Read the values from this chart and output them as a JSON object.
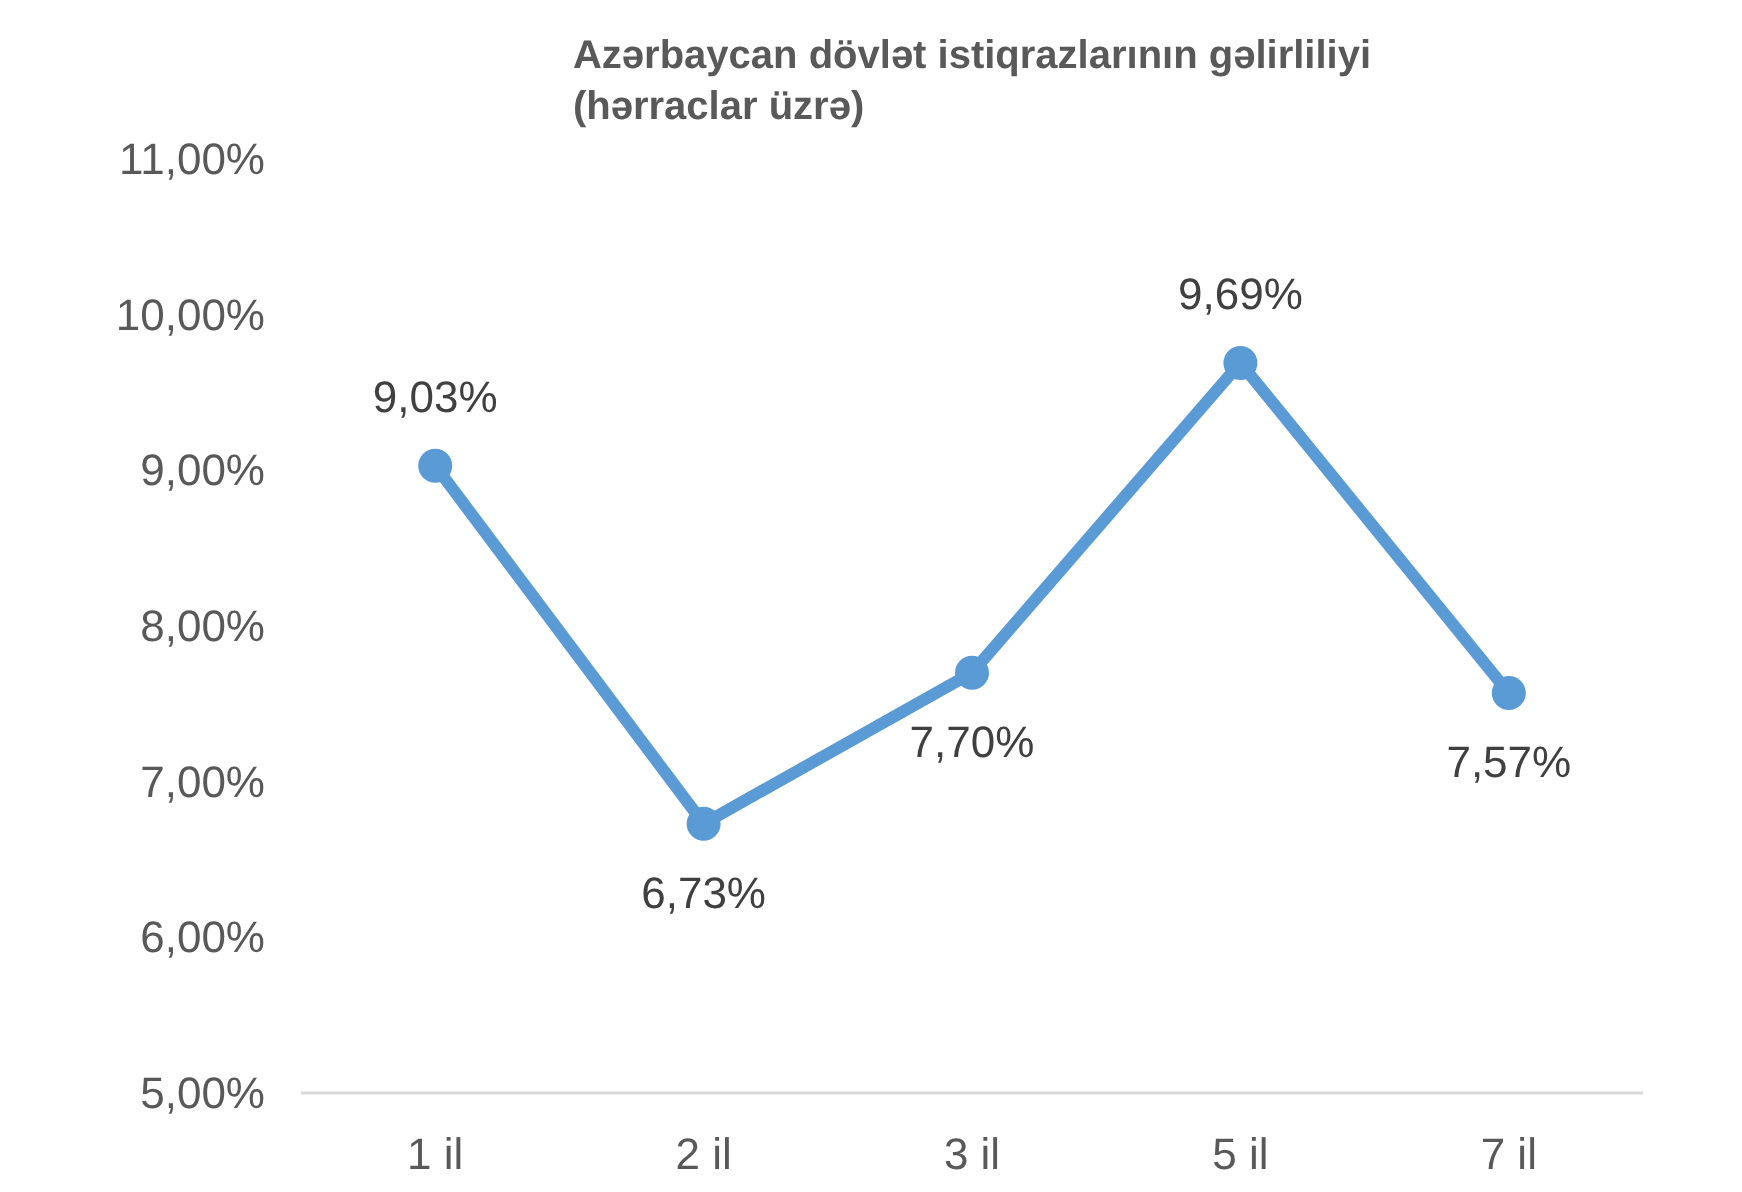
{
  "chart_data": {
    "type": "line",
    "title": "Azərbaycan dövlət istiqrazlarının gəlirliliyi\n(hərraclar üzrə)",
    "categories": [
      "1 il",
      "2 il",
      "3 il",
      "5 il",
      "7 il"
    ],
    "series": [
      {
        "color": "#5b9bd5",
        "values": [
          9.03,
          6.73,
          7.7,
          9.69,
          7.57
        ],
        "value_labels": [
          "9,03%",
          "6,73%",
          "7,70%",
          "9,69%",
          "7,57%"
        ]
      }
    ],
    "ylim": [
      5,
      11
    ],
    "yticks": [
      {
        "value": 5,
        "label": "5,00%"
      },
      {
        "value": 6,
        "label": "6,00%"
      },
      {
        "value": 7,
        "label": "7,00%"
      },
      {
        "value": 8,
        "label": "8,00%"
      },
      {
        "value": 9,
        "label": "9,00%"
      },
      {
        "value": 10,
        "label": "10,00%"
      },
      {
        "value": 11,
        "label": "11,00%"
      }
    ],
    "grid": false,
    "marker": "circle",
    "line_style": "solid"
  }
}
